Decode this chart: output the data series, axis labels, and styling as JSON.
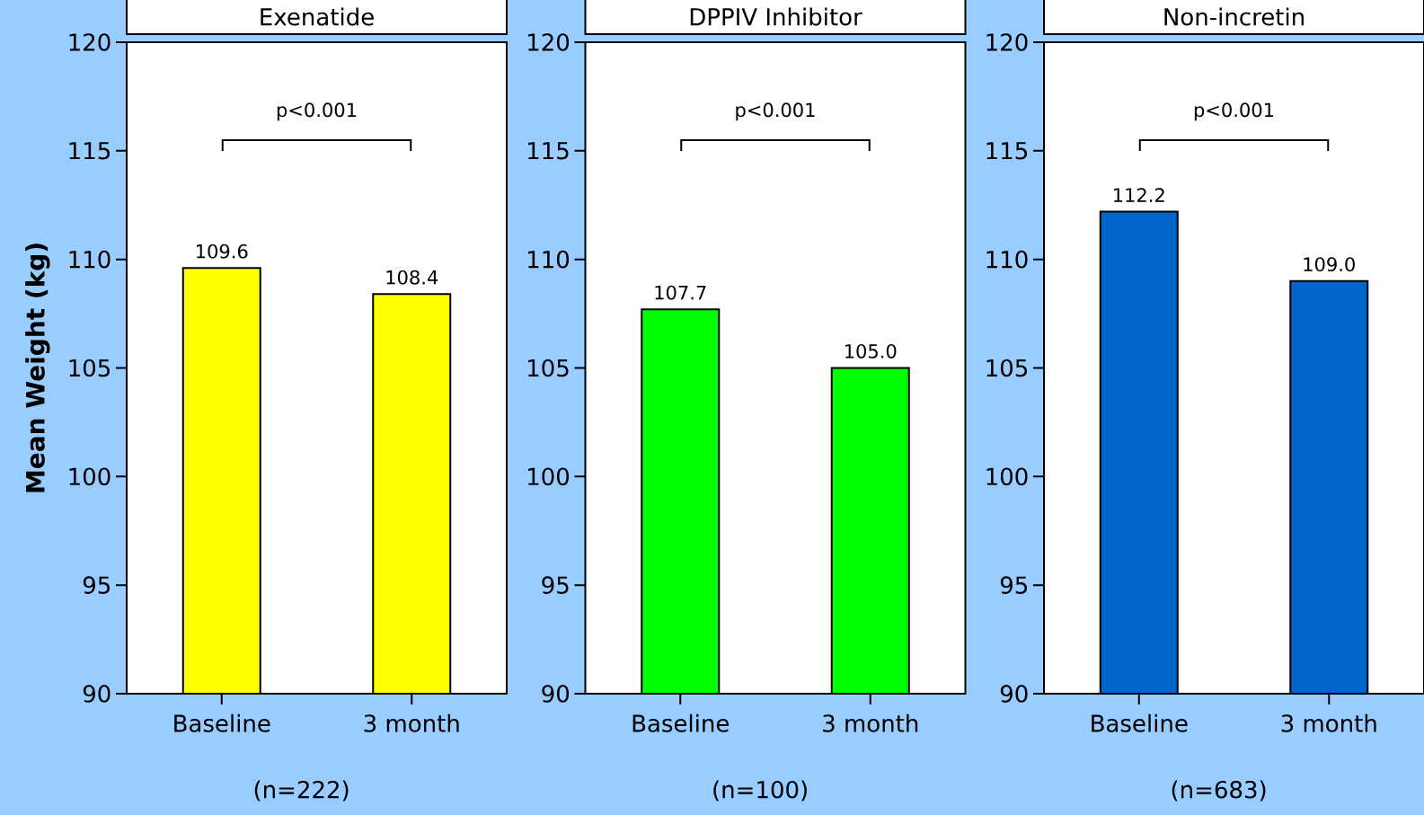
{
  "chart_data": [
    {
      "type": "bar",
      "title": "Exenatide",
      "ylabel": "Mean Weight (kg)",
      "categories": [
        "Baseline",
        "3 month"
      ],
      "values": [
        109.6,
        108.4
      ],
      "value_labels": [
        "109.6",
        "108.4"
      ],
      "color": "#ffff00",
      "ylim": [
        90,
        120
      ],
      "yticks": [
        90,
        95,
        100,
        105,
        110,
        115,
        120
      ],
      "annotations": [
        "p<0.001",
        "(n=222)"
      ]
    },
    {
      "type": "bar",
      "title": "DPPIV Inhibitor",
      "categories": [
        "Baseline",
        "3 month"
      ],
      "values": [
        107.7,
        105.0
      ],
      "value_labels": [
        "107.7",
        "105.0"
      ],
      "color": "#00ff00",
      "ylim": [
        90,
        120
      ],
      "yticks": [
        90,
        95,
        100,
        105,
        110,
        115,
        120
      ],
      "annotations": [
        "p<0.001",
        "(n=100)"
      ]
    },
    {
      "type": "bar",
      "title": "Non-incretin",
      "categories": [
        "Baseline",
        "3 month"
      ],
      "values": [
        112.2,
        109.0
      ],
      "value_labels": [
        "112.2",
        "109.0"
      ],
      "color": "#0066cc",
      "ylim": [
        90,
        120
      ],
      "yticks": [
        90,
        95,
        100,
        105,
        110,
        115,
        120
      ],
      "annotations": [
        "p<0.001",
        "(n=683)"
      ]
    }
  ]
}
